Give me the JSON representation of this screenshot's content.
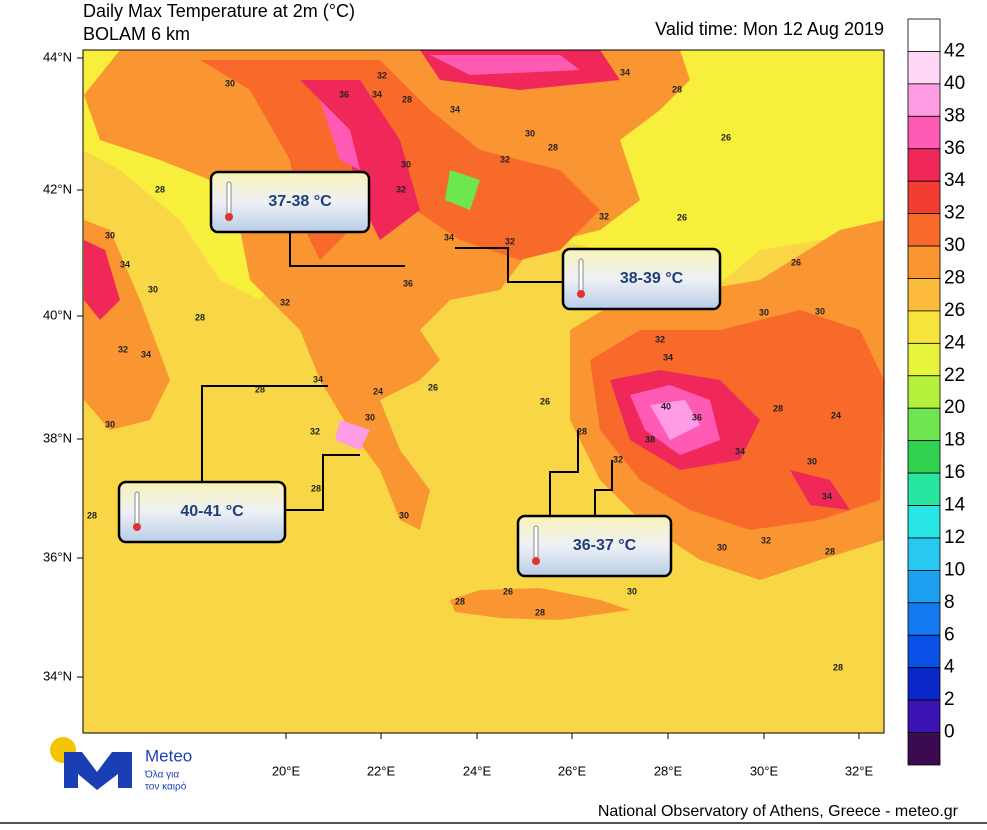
{
  "header": {
    "title": "Daily Max Temperature at 2m (°C)",
    "model": "BOLAM 6 km",
    "valid_time": "Valid time: Mon 12 Aug 2019"
  },
  "map": {
    "lat_labels": [
      "44°N",
      "42°N",
      "40°N",
      "38°N",
      "36°N",
      "34°N"
    ],
    "lon_labels": [
      "20°E",
      "22°E",
      "24°E",
      "26°E",
      "28°E",
      "30°E",
      "32°E"
    ],
    "contour_labels": [
      30,
      32,
      36,
      34,
      28,
      34,
      34,
      32,
      30,
      28,
      26,
      28,
      32,
      30,
      28,
      30,
      34,
      30,
      32,
      34,
      30,
      28,
      34,
      32,
      30,
      24,
      26,
      28,
      30,
      28,
      32,
      34,
      30,
      40,
      36,
      38,
      34,
      30,
      28,
      24,
      34,
      30,
      32,
      28,
      28,
      26,
      28,
      30,
      28,
      26,
      30,
      26,
      32,
      34,
      32,
      36,
      32,
      28,
      26,
      28,
      32
    ]
  },
  "callouts": [
    {
      "label": "37-38 °C"
    },
    {
      "label": "38-39 °C"
    },
    {
      "label": "40-41 °C"
    },
    {
      "label": "36-37 °C"
    }
  ],
  "colorbar": {
    "levels": [
      42,
      40,
      38,
      36,
      34,
      32,
      30,
      28,
      26,
      24,
      22,
      20,
      18,
      16,
      14,
      12,
      10,
      8,
      6,
      4,
      2,
      0
    ],
    "colors": [
      "#ffffff",
      "#ffd8f5",
      "#ff9ce6",
      "#ff5ab4",
      "#f0285a",
      "#f53c32",
      "#f86a2a",
      "#fa9632",
      "#fbbc3c",
      "#f7e43c",
      "#e6f53c",
      "#b4f03c",
      "#6ee650",
      "#32d250",
      "#28e6a0",
      "#28e6e6",
      "#28c8f0",
      "#1ea0f0",
      "#1478f0",
      "#0a50e6",
      "#0a28c8",
      "#3c14b4",
      "#3c0a50"
    ]
  },
  "logo": {
    "name": "Meteo",
    "tagline_1": "Όλα για",
    "tagline_2": "τον καιρό"
  },
  "footer": "National Observatory of Athens, Greece - meteo.gr"
}
